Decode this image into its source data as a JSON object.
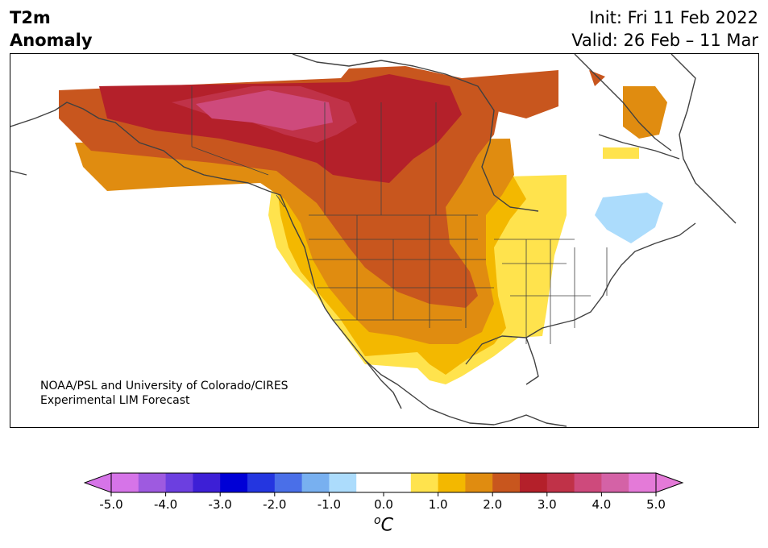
{
  "title": {
    "line1": "T2m",
    "line2": "Anomaly"
  },
  "info": {
    "init": "Init: Fri 11 Feb 2022",
    "valid": "Valid: 26 Feb – 11 Mar"
  },
  "credit": {
    "line1": "NOAA/PSL and University of Colorado/CIRES",
    "line2": "Experimental LIM Forecast"
  },
  "colorbar": {
    "unit_label": "oC",
    "ticks": [
      "-5.0",
      "-4.0",
      "-3.0",
      "-2.0",
      "-1.0",
      "0.0",
      "1.0",
      "2.0",
      "3.0",
      "4.0",
      "5.0"
    ],
    "colors": [
      "#d674e8",
      "#9e5ae0",
      "#6c3fe0",
      "#3d1fd6",
      "#0000d6",
      "#2436e0",
      "#4a6fe8",
      "#78b0f0",
      "#acdcfc",
      "#ffffff",
      "#ffffff",
      "#ffe34d",
      "#f3b800",
      "#e08c10",
      "#c8561e",
      "#b4202a",
      "#c03248",
      "#ce4a7c",
      "#d462a6",
      "#e47ad8"
    ],
    "extend_low": "#d674e8",
    "extend_high": "#e47ad8"
  }
}
